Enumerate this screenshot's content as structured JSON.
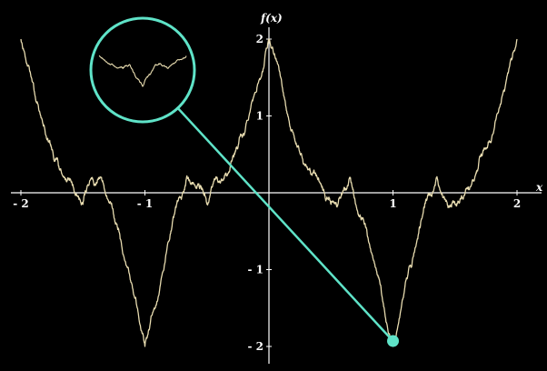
{
  "chart_data": {
    "type": "line",
    "title": "",
    "xlabel": "x",
    "ylabel": "f(x)",
    "xlim": [
      -2.0,
      2.0
    ],
    "ylim": [
      -2.0,
      2.0
    ],
    "x_ticks": [
      -2,
      -1,
      1,
      2
    ],
    "x_tick_labels": [
      "- 2",
      "- 1",
      "1",
      "2"
    ],
    "y_ticks": [
      2,
      1,
      -1,
      -2
    ],
    "y_tick_labels": [
      "2",
      "1",
      "- 1",
      "- 2"
    ],
    "grid": false,
    "series": [
      {
        "name": "",
        "x": [
          -2.0,
          -1.8,
          -1.67,
          -1.5,
          -1.35,
          -1.2,
          -1.0,
          -0.8,
          -0.65,
          -0.5,
          -0.33,
          -0.2,
          0.0,
          0.2,
          0.35,
          0.5,
          0.65,
          0.8,
          1.0,
          1.2,
          1.35,
          1.5,
          1.67,
          1.8,
          2.0
        ],
        "y": [
          2.0,
          0.75,
          0.25,
          -0.15,
          0.2,
          -0.6,
          -2.0,
          -0.6,
          0.2,
          -0.15,
          0.25,
          0.75,
          2.0,
          0.75,
          0.25,
          -0.15,
          0.2,
          -0.6,
          -2.0,
          -0.6,
          0.2,
          -0.15,
          0.25,
          0.75,
          2.0
        ]
      }
    ],
    "colors": {
      "background": "#000000",
      "curve": "#e8dcb0",
      "axes": "#ffffff",
      "highlight": "#5fe3c8"
    },
    "annotations": [
      {
        "type": "zoom-circle",
        "target": {
          "x": 1.0,
          "y": -1.85
        },
        "marker_at": {
          "x": 1.0,
          "y": -2.0
        }
      }
    ]
  }
}
